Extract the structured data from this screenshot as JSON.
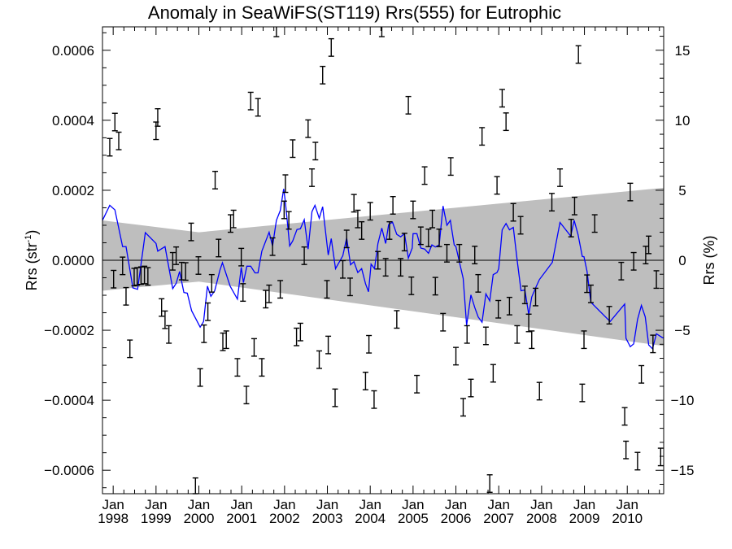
{
  "chart_data": {
    "type": "scatter",
    "title": "Anomaly in SeaWiFS(ST119) Rrs(555) for Eutrophic",
    "ylabel_left": "Rrs (str",
    "ylabel_left_sup": "-1",
    "ylabel_left_close": ")",
    "ylabel_right": "Rrs (%)",
    "xlim": [
      1997.75,
      2010.85
    ],
    "ylim": [
      -0.000667,
      0.000667
    ],
    "ylim_right": [
      -16.67,
      16.67
    ],
    "grid": false,
    "y_ticks_left": [
      {
        "v": 0.0006,
        "label": "0.0006"
      },
      {
        "v": 0.0004,
        "label": "0.0004"
      },
      {
        "v": 0.0002,
        "label": "0.0002"
      },
      {
        "v": 0.0,
        "label": "0.0000"
      },
      {
        "v": -0.0002,
        "label": "−0.0002"
      },
      {
        "v": -0.0004,
        "label": "−0.0004"
      },
      {
        "v": -0.0006,
        "label": "−0.0006"
      }
    ],
    "y_ticks_right": [
      {
        "v": 15,
        "label": "15"
      },
      {
        "v": 10,
        "label": "10"
      },
      {
        "v": 5,
        "label": "5"
      },
      {
        "v": 0,
        "label": "0"
      },
      {
        "v": -5,
        "label": "−5"
      },
      {
        "v": -10,
        "label": "−10"
      },
      {
        "v": -15,
        "label": "−15"
      }
    ],
    "x_ticks": [
      {
        "v": 1998,
        "month": "Jan",
        "year": "1998"
      },
      {
        "v": 1999,
        "month": "Jan",
        "year": "1999"
      },
      {
        "v": 2000,
        "month": "Jan",
        "year": "2000"
      },
      {
        "v": 2001,
        "month": "Jan",
        "year": "2001"
      },
      {
        "v": 2002,
        "month": "Jan",
        "year": "2002"
      },
      {
        "v": 2003,
        "month": "Jan",
        "year": "2003"
      },
      {
        "v": 2004,
        "month": "Jan",
        "year": "2004"
      },
      {
        "v": 2005,
        "month": "Jan",
        "year": "2005"
      },
      {
        "v": 2006,
        "month": "Jan",
        "year": "2006"
      },
      {
        "v": 2007,
        "month": "Jan",
        "year": "2007"
      },
      {
        "v": 2008,
        "month": "Jan",
        "year": "2008"
      },
      {
        "v": 2009,
        "month": "Jan",
        "year": "2009"
      },
      {
        "v": 2010,
        "month": "Jan",
        "year": "2010"
      }
    ],
    "colors": {
      "points": "#000000",
      "running_mean": "#0000ff",
      "band": "#bebebe",
      "zero_line": "#000000"
    },
    "error_halfwidth": 2.5e-05,
    "anomaly_points": [
      [
        1997.92,
        0.000323
      ],
      [
        1998.04,
        0.000395
      ],
      [
        1998.13,
        0.000341
      ],
      [
        1998.01,
        -5.4e-05
      ],
      [
        1998.22,
        -1.6e-05
      ],
      [
        1998.3,
        -0.000103
      ],
      [
        1998.39,
        -0.000253
      ],
      [
        1998.49,
        -4.8e-05
      ],
      [
        1998.56,
        -4.6e-05
      ],
      [
        1998.65,
        -4.4e-05
      ],
      [
        1998.73,
        -4.2e-05
      ],
      [
        1998.81,
        -4.6e-05
      ],
      [
        1999.04,
        0.000408
      ],
      [
        1999.0,
        0.00037
      ],
      [
        1999.13,
        -0.000135
      ],
      [
        1999.21,
        -0.00017
      ],
      [
        1999.3,
        -0.000212
      ],
      [
        1999.39,
        -3e-06
      ],
      [
        1999.47,
        1.3e-05
      ],
      [
        1999.6,
        -3.1e-05
      ],
      [
        1999.69,
        -3.2e-05
      ],
      [
        1999.82,
        8.1e-05
      ],
      [
        1999.99,
        -1.5e-05
      ],
      [
        2000.03,
        -0.000335
      ],
      [
        1999.92,
        -0.000647
      ],
      [
        2000.12,
        -0.00021
      ],
      [
        2000.21,
        -0.000147
      ],
      [
        2000.3,
        -6.6e-05
      ],
      [
        2000.38,
        0.000229
      ],
      [
        2000.46,
        3.5e-05
      ],
      [
        2000.56,
        -0.000233
      ],
      [
        2000.64,
        -0.000227
      ],
      [
        2000.74,
        0.000105
      ],
      [
        2000.81,
        0.000118
      ],
      [
        2000.9,
        -0.000306
      ],
      [
        2000.99,
        9e-06
      ],
      [
        2001.03,
        -9.2e-05
      ],
      [
        2001.11,
        -0.000385
      ],
      [
        2001.21,
        0.000455
      ],
      [
        2001.38,
        0.000437
      ],
      [
        2001.29,
        -0.000249
      ],
      [
        2001.47,
        -0.000306
      ],
      [
        2001.56,
        -0.000111
      ],
      [
        2001.64,
        -9.6e-05
      ],
      [
        2001.72,
        3.9e-05
      ],
      [
        2001.81,
        0.000664
      ],
      [
        2001.9,
        -8.3e-05
      ],
      [
        2002.02,
        0.000219
      ],
      [
        2001.99,
        0.000144
      ],
      [
        2002.1,
        0.000114
      ],
      [
        2002.19,
        0.000319
      ],
      [
        2002.28,
        -0.000219
      ],
      [
        2002.37,
        -0.000205
      ],
      [
        2002.46,
        1.3e-05
      ],
      [
        2002.55,
        0.000376
      ],
      [
        2002.64,
        0.000236
      ],
      [
        2002.72,
        0.000312
      ],
      [
        2002.81,
        -0.000284
      ],
      [
        2002.89,
        0.000529
      ],
      [
        2002.99,
        -8.3e-05
      ],
      [
        2003.02,
        -0.000242
      ],
      [
        2003.09,
        0.000608
      ],
      [
        2003.18,
        -0.000393
      ],
      [
        2003.36,
        -2.6e-05
      ],
      [
        2003.45,
        6.1e-05
      ],
      [
        2003.53,
        -7.6e-05
      ],
      [
        2003.62,
        0.000163
      ],
      [
        2003.71,
        0.000118
      ],
      [
        2003.8,
        8.5e-05
      ],
      [
        2003.89,
        -0.000345
      ],
      [
        2003.97,
        -0.00024
      ],
      [
        2004.0,
        0.00014
      ],
      [
        2004.09,
        -0.000398
      ],
      [
        2004.18,
        0.0
      ],
      [
        2004.27,
        0.000664
      ],
      [
        2004.36,
        -2e-05
      ],
      [
        2004.45,
        8.5e-05
      ],
      [
        2004.53,
        0.000157
      ],
      [
        2004.62,
        -0.000169
      ],
      [
        2004.71,
        -2e-05
      ],
      [
        2004.8,
        5.2e-05
      ],
      [
        2004.89,
        0.000443
      ],
      [
        2004.96,
        -7.3e-05
      ],
      [
        2005.0,
        0.000144
      ],
      [
        2005.09,
        -0.000354
      ],
      [
        2005.18,
        7e-05
      ],
      [
        2005.27,
        0.000242
      ],
      [
        2005.36,
        6.4e-05
      ],
      [
        2005.45,
        0.000118
      ],
      [
        2005.52,
        -7.4e-05
      ],
      [
        2005.61,
        6.4e-05
      ],
      [
        2005.7,
        -0.000177
      ],
      [
        2005.79,
        2e-05
      ],
      [
        2005.88,
        0.000268
      ],
      [
        2006.0,
        -0.000274
      ],
      [
        2006.08,
        2e-05
      ],
      [
        2006.17,
        -0.00042
      ],
      [
        2006.26,
        -0.000212
      ],
      [
        2006.35,
        -0.000365
      ],
      [
        2006.44,
        1.5e-05
      ],
      [
        2006.52,
        -6.6e-05
      ],
      [
        2006.61,
        0.000354
      ],
      [
        2006.7,
        -0.000216
      ],
      [
        2006.79,
        -0.000638
      ],
      [
        2006.87,
        -0.000323
      ],
      [
        2006.96,
        0.000214
      ],
      [
        2006.99,
        -0.00014
      ],
      [
        2007.08,
        0.000463
      ],
      [
        2007.17,
        0.000396
      ],
      [
        2007.25,
        -0.000131
      ],
      [
        2007.34,
        0.000137
      ],
      [
        2007.43,
        -0.000212
      ],
      [
        2007.51,
        0.0001
      ],
      [
        2007.61,
        -9.9e-05
      ],
      [
        2007.7,
        -0.000179
      ],
      [
        2007.77,
        -0.000227
      ],
      [
        2007.86,
        -0.000105
      ],
      [
        2007.95,
        -0.000374
      ],
      [
        2008.24,
        0.000166
      ],
      [
        2008.43,
        0.000236
      ],
      [
        2008.69,
        9.2e-05
      ],
      [
        2008.77,
        0.000155
      ],
      [
        2008.86,
        0.000588
      ],
      [
        2008.99,
        -0.000227
      ],
      [
        2008.95,
        -0.000379
      ],
      [
        2009.06,
        -6.7e-05
      ],
      [
        2009.15,
        -9.6e-05
      ],
      [
        2009.24,
        0.000105
      ],
      [
        2009.58,
        -0.000157
      ],
      [
        2009.86,
        -3.1e-05
      ],
      [
        2009.94,
        -0.000446
      ],
      [
        2009.97,
        -0.000542
      ],
      [
        2010.07,
        0.000195
      ],
      [
        2010.15,
        -3e-06
      ],
      [
        2010.24,
        -0.000574
      ],
      [
        2010.33,
        -0.000326
      ],
      [
        2010.43,
        1.5e-05
      ],
      [
        2010.5,
        4.4e-05
      ],
      [
        2010.6,
        -0.000239
      ],
      [
        2010.68,
        -5.5e-05
      ],
      [
        2010.78,
        -0.000562
      ]
    ],
    "running_mean": [
      [
        1997.75,
        0.000114
      ],
      [
        1997.92,
        0.000157
      ],
      [
        1998.04,
        0.000144
      ],
      [
        1998.22,
        3.9e-05
      ],
      [
        1998.3,
        3.9e-05
      ],
      [
        1998.46,
        -7.9e-05
      ],
      [
        1998.57,
        -8.3e-05
      ],
      [
        1998.75,
        7.9e-05
      ],
      [
        1999.0,
        4.8e-05
      ],
      [
        1999.04,
        2.6e-05
      ],
      [
        1999.21,
        3.9e-05
      ],
      [
        1999.39,
        -8.1e-05
      ],
      [
        1999.47,
        -6.6e-05
      ],
      [
        1999.55,
        -3.2e-05
      ],
      [
        1999.65,
        -9.2e-05
      ],
      [
        1999.73,
        -9.4e-05
      ],
      [
        1999.83,
        -0.000144
      ],
      [
        2000.03,
        -0.000191
      ],
      [
        2000.11,
        -0.000175
      ],
      [
        2000.2,
        -7.4e-05
      ],
      [
        2000.28,
        -0.000103
      ],
      [
        2000.37,
        -8.7e-05
      ],
      [
        2000.49,
        -2.9e-05
      ],
      [
        2000.55,
        -7e-06
      ],
      [
        2000.73,
        -7.4e-05
      ],
      [
        2000.9,
        -0.000111
      ],
      [
        2000.99,
        -2e-05
      ],
      [
        2001.04,
        -6.4e-05
      ],
      [
        2001.12,
        -1.7e-05
      ],
      [
        2001.21,
        -1.7e-05
      ],
      [
        2001.31,
        -3.6e-05
      ],
      [
        2001.38,
        -3.6e-05
      ],
      [
        2001.47,
        2.6e-05
      ],
      [
        2001.64,
        8e-05
      ],
      [
        2001.72,
        4.1e-05
      ],
      [
        2001.81,
        0.000114
      ],
      [
        2001.9,
        0.000142
      ],
      [
        2001.98,
        0.000204
      ],
      [
        2002.02,
        0.000166
      ],
      [
        2002.12,
        4.1e-05
      ],
      [
        2002.19,
        5.5e-05
      ],
      [
        2002.29,
        8.8e-05
      ],
      [
        2002.37,
        9e-05
      ],
      [
        2002.46,
        0.000116
      ],
      [
        2002.55,
        3.2e-05
      ],
      [
        2002.64,
        0.000139
      ],
      [
        2002.71,
        0.000157
      ],
      [
        2002.81,
        0.00012
      ],
      [
        2002.89,
        0.000153
      ],
      [
        2003.02,
        1.5e-05
      ],
      [
        2003.09,
        6.2e-05
      ],
      [
        2003.19,
        -2.4e-05
      ],
      [
        2003.36,
        1.3e-05
      ],
      [
        2003.45,
        6.4e-05
      ],
      [
        2003.54,
        -1.3e-05
      ],
      [
        2003.62,
        -4e-06
      ],
      [
        2003.71,
        -3.5e-05
      ],
      [
        2003.8,
        -2.4e-05
      ],
      [
        2003.89,
        -6.7e-05
      ],
      [
        2003.96,
        -9e-05
      ],
      [
        2004.02,
        -1.1e-05
      ],
      [
        2004.1,
        -2.4e-05
      ],
      [
        2004.18,
        4.8e-05
      ],
      [
        2004.27,
        9.2e-05
      ],
      [
        2004.36,
        4.8e-05
      ],
      [
        2004.43,
        0.000102
      ],
      [
        2004.52,
        0.000109
      ],
      [
        2004.62,
        7.4e-05
      ],
      [
        2004.71,
        6.7e-05
      ],
      [
        2004.8,
        7.6e-05
      ],
      [
        2004.89,
        6e-06
      ],
      [
        2004.98,
        3.5e-05
      ],
      [
        2005.0,
        7.6e-05
      ],
      [
        2005.09,
        7.6e-05
      ],
      [
        2005.18,
        3.5e-05
      ],
      [
        2005.27,
        3.2e-05
      ],
      [
        2005.36,
        2e-05
      ],
      [
        2005.44,
        4.4e-05
      ],
      [
        2005.52,
        3.8e-05
      ],
      [
        2005.61,
        4.4e-05
      ],
      [
        2005.7,
        0.000155
      ],
      [
        2005.79,
        0.0001
      ],
      [
        2005.87,
        0.000114
      ],
      [
        2005.96,
        4.4e-05
      ],
      [
        2006.0,
        3.9e-05
      ],
      [
        2006.08,
        -4e-06
      ],
      [
        2006.17,
        -5.2e-05
      ],
      [
        2006.25,
        -0.000186
      ],
      [
        2006.35,
        -9.9e-05
      ],
      [
        2006.44,
        -0.000135
      ],
      [
        2006.52,
        -0.000162
      ],
      [
        2006.61,
        -0.000177
      ],
      [
        2006.7,
        -9.6e-05
      ],
      [
        2006.79,
        -0.000116
      ],
      [
        2006.87,
        -4.1e-05
      ],
      [
        2006.96,
        -3.5e-05
      ],
      [
        2007.0,
        -2.4e-05
      ],
      [
        2007.08,
        8.7e-05
      ],
      [
        2007.17,
        0.000105
      ],
      [
        2007.25,
        8.7e-05
      ],
      [
        2007.34,
        9.4e-05
      ],
      [
        2007.43,
        0.0
      ],
      [
        2007.52,
        -8.7e-05
      ],
      [
        2007.61,
        -8.5e-05
      ],
      [
        2007.7,
        -0.000155
      ],
      [
        2007.77,
        -0.000105
      ],
      [
        2007.86,
        -7.9e-05
      ],
      [
        2007.95,
        -5.5e-05
      ],
      [
        2008.25,
        -6e-06
      ],
      [
        2008.43,
        0.000108
      ],
      [
        2008.68,
        6.9e-05
      ],
      [
        2008.76,
        0.000114
      ],
      [
        2008.85,
        7.4e-05
      ],
      [
        2008.95,
        1.1e-05
      ],
      [
        2008.99,
        1e-05
      ],
      [
        2009.06,
        -3.1e-05
      ],
      [
        2009.15,
        -0.00012
      ],
      [
        2009.6,
        -0.000175
      ],
      [
        2009.94,
        -0.000125
      ],
      [
        2009.97,
        -0.000223
      ],
      [
        2010.07,
        -0.000247
      ],
      [
        2010.15,
        -0.000239
      ],
      [
        2010.24,
        -0.000169
      ],
      [
        2010.33,
        -0.000129
      ],
      [
        2010.42,
        -0.000162
      ],
      [
        2010.5,
        -0.000242
      ],
      [
        2010.59,
        -0.000253
      ],
      [
        2010.68,
        -0.00021
      ],
      [
        2010.82,
        -0.000221
      ],
      [
        2010.85,
        -0.000222
      ]
    ],
    "uncertainty_band": {
      "upper": [
        [
          1997.75,
          0.000114
        ],
        [
          2000.0,
          8e-05
        ],
        [
          2010.85,
          0.000207
        ]
      ],
      "lower": [
        [
          1997.75,
          -8.7e-05
        ],
        [
          2000.0,
          -6.1e-05
        ],
        [
          2010.85,
          -0.000245
        ]
      ]
    }
  }
}
